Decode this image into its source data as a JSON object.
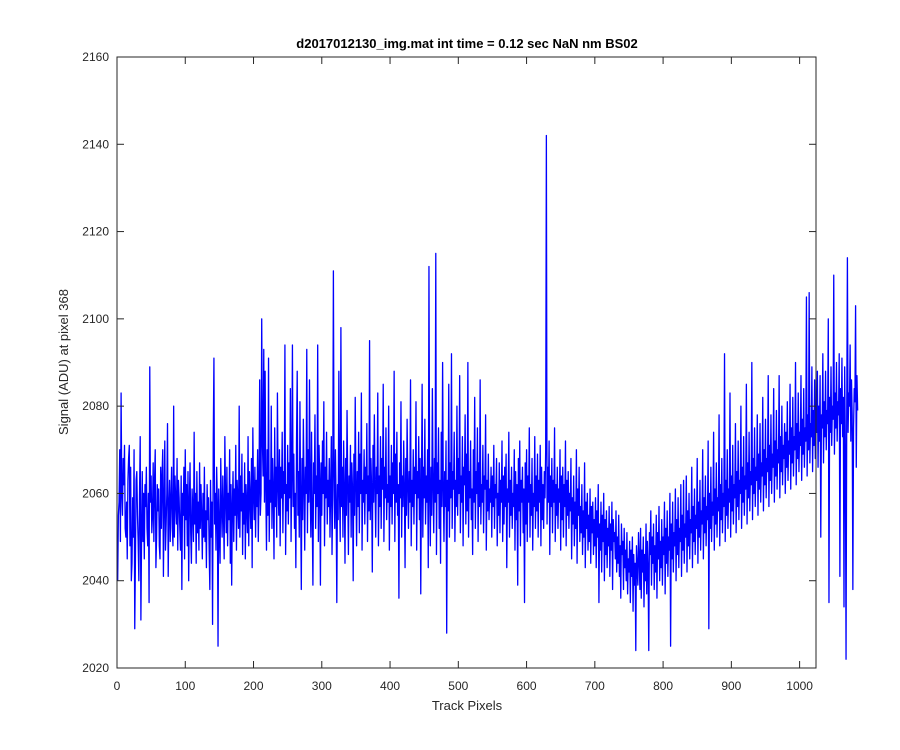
{
  "chart_data": {
    "type": "line",
    "title": "d2017012130_img.mat int time = 0.12 sec  NaN nm BS02",
    "xlabel": "Track Pixels",
    "ylabel": "Signal (ADU) at pixel 368",
    "xlim": [
      0,
      1024
    ],
    "ylim": [
      2020,
      2160
    ],
    "x_ticks": [
      0,
      100,
      200,
      300,
      400,
      500,
      600,
      700,
      800,
      900,
      1000
    ],
    "y_ticks": [
      2020,
      2040,
      2060,
      2080,
      2100,
      2120,
      2140,
      2160
    ],
    "x_tick_labels": [
      "0",
      "100",
      "200",
      "300",
      "400",
      "500",
      "600",
      "700",
      "800",
      "900",
      "1000"
    ],
    "y_tick_labels": [
      "2020",
      "2040",
      "2060",
      "2080",
      "2100",
      "2120",
      "2140",
      "2160"
    ],
    "grid": false,
    "series": [
      {
        "color": "#0000ff",
        "x_start": 1,
        "x_step": 1,
        "values": [
          2040,
          2055,
          2058,
          2070,
          2049,
          2083,
          2060,
          2055,
          2068,
          2062,
          2071,
          2052,
          2050,
          2058,
          2045,
          2063,
          2068,
          2071,
          2048,
          2066,
          2040,
          2044,
          2059,
          2050,
          2070,
          2029,
          2045,
          2063,
          2065,
          2055,
          2049,
          2040,
          2060,
          2073,
          2031,
          2050,
          2065,
          2049,
          2060,
          2045,
          2062,
          2057,
          2066,
          2052,
          2048,
          2060,
          2035,
          2089,
          2058,
          2064,
          2051,
          2055,
          2067,
          2049,
          2063,
          2070,
          2043,
          2050,
          2062,
          2056,
          2061,
          2048,
          2045,
          2066,
          2052,
          2064,
          2070,
          2041,
          2058,
          2072,
          2047,
          2053,
          2060,
          2076,
          2041,
          2056,
          2063,
          2049,
          2059,
          2066,
          2052,
          2048,
          2080,
          2050,
          2064,
          2058,
          2053,
          2068,
          2047,
          2063,
          2059,
          2052,
          2047,
          2064,
          2038,
          2060,
          2055,
          2066,
          2045,
          2070,
          2054,
          2062,
          2048,
          2065,
          2040,
          2058,
          2067,
          2051,
          2044,
          2061,
          2056,
          2049,
          2074,
          2053,
          2060,
          2044,
          2065,
          2051,
          2058,
          2047,
          2067,
          2052,
          2062,
          2055,
          2045,
          2060,
          2050,
          2066,
          2049,
          2056,
          2043,
          2062,
          2054,
          2059,
          2047,
          2038,
          2063,
          2050,
          2058,
          2030,
          2072,
          2091,
          2053,
          2060,
          2047,
          2066,
          2058,
          2025,
          2061,
          2052,
          2044,
          2068,
          2057,
          2050,
          2064,
          2055,
          2045,
          2073,
          2059,
          2051,
          2066,
          2048,
          2060,
          2054,
          2070,
          2044,
          2062,
          2039,
          2057,
          2065,
          2049,
          2061,
          2055,
          2071,
          2047,
          2063,
          2058,
          2052,
          2080,
          2050,
          2064,
          2056,
          2069,
          2046,
          2060,
          2053,
          2067,
          2045,
          2062,
          2057,
          2051,
          2073,
          2048,
          2065,
          2059,
          2052,
          2068,
          2043,
          2075,
          2060,
          2054,
          2066,
          2050,
          2063,
          2057,
          2070,
          2049,
          2061,
          2086,
          2055,
          2060,
          2100,
          2072,
          2064,
          2093,
          2058,
          2088,
          2061,
          2047,
          2070,
          2055,
          2091,
          2049,
          2063,
          2058,
          2080,
          2052,
          2068,
          2060,
          2045,
          2075,
          2057,
          2066,
          2050,
          2083,
          2062,
          2055,
          2070,
          2048,
          2066,
          2059,
          2074,
          2051,
          2065,
          2060,
          2094,
          2046,
          2062,
          2056,
          2071,
          2053,
          2067,
          2059,
          2084,
          2049,
          2064,
          2094,
          2057,
          2069,
          2052,
          2060,
          2043,
          2072,
          2088,
          2055,
          2065,
          2050,
          2081,
          2059,
          2038,
          2068,
          2054,
          2077,
          2062,
          2047,
          2066,
          2060,
          2093,
          2051,
          2070,
          2058,
          2086,
          2061,
          2050,
          2074,
          2055,
          2039,
          2067,
          2060,
          2078,
          2052,
          2064,
          2057,
          2094,
          2049,
          2071,
          2063,
          2039,
          2067,
          2055,
          2072,
          2060,
          2081,
          2048,
          2066,
          2059,
          2074,
          2053,
          2063,
          2057,
          2068,
          2050,
          2061,
          2073,
          2046,
          2059,
          2111,
          2064,
          2052,
          2070,
          2058,
          2035,
          2062,
          2054,
          2088,
          2060,
          2049,
          2098,
          2057,
          2066,
          2050,
          2072,
          2061,
          2044,
          2068,
          2055,
          2079,
          2062,
          2046,
          2064,
          2058,
          2071,
          2050,
          2067,
          2061,
          2040,
          2069,
          2055,
          2082,
          2062,
          2048,
          2065,
          2057,
          2074,
          2051,
          2069,
          2060,
          2083,
          2047,
          2063,
          2058,
          2070,
          2053,
          2066,
          2060,
          2076,
          2049,
          2064,
          2056,
          2095,
          2054,
          2068,
          2061,
          2042,
          2071,
          2058,
          2078,
          2062,
          2050,
          2066,
          2060,
          2083,
          2048,
          2064,
          2057,
          2073,
          2052,
          2068,
          2061,
          2085,
          2049,
          2066,
          2059,
          2075,
          2054,
          2062,
          2058,
          2080,
          2047,
          2064,
          2057,
          2071,
          2053,
          2067,
          2060,
          2088,
          2049,
          2069,
          2058,
          2074,
          2055,
          2062,
          2036,
          2067,
          2059,
          2081,
          2050,
          2064,
          2057,
          2072,
          2061,
          2043,
          2068,
          2055,
          2077,
          2062,
          2052,
          2065,
          2058,
          2086,
          2048,
          2063,
          2057,
          2070,
          2053,
          2066,
          2060,
          2081,
          2047,
          2065,
          2059,
          2073,
          2054,
          2068,
          2037,
          2062,
          2085,
          2050,
          2066,
          2059,
          2077,
          2053,
          2064,
          2058,
          2070,
          2043,
          2112,
          2060,
          2048,
          2066,
          2055,
          2084,
          2062,
          2051,
          2068,
          2058,
          2115,
          2046,
          2067,
          2060,
          2075,
          2052,
          2063,
          2044,
          2074,
          2057,
          2090,
          2061,
          2049,
          2065,
          2057,
          2072,
          2028,
          2063,
          2056,
          2085,
          2050,
          2067,
          2059,
          2092,
          2052,
          2065,
          2061,
          2074,
          2049,
          2063,
          2057,
          2080,
          2055,
          2068,
          2060,
          2087,
          2051,
          2064,
          2058,
          2073,
          2048,
          2066,
          2062,
          2078,
          2053,
          2069,
          2056,
          2090,
          2050,
          2065,
          2059,
          2072,
          2054,
          2061,
          2046,
          2070,
          2058,
          2082,
          2052,
          2065,
          2060,
          2075,
          2049,
          2067,
          2057,
          2086,
          2053,
          2062,
          2058,
          2071,
          2051,
          2064,
          2061,
          2078,
          2047,
          2063,
          2056,
          2069,
          2054,
          2061,
          2058,
          2066,
          2050,
          2064,
          2057,
          2071,
          2052,
          2062,
          2059,
          2068,
          2048,
          2060,
          2055,
          2067,
          2051,
          2063,
          2058,
          2072,
          2049,
          2064,
          2053,
          2066,
          2057,
          2069,
          2043,
          2061,
          2058,
          2074,
          2050,
          2063,
          2055,
          2066,
          2052,
          2060,
          2057,
          2070,
          2047,
          2065,
          2054,
          2062,
          2039,
          2068,
          2056,
          2072,
          2048,
          2063,
          2058,
          2066,
          2051,
          2061,
          2035,
          2067,
          2053,
          2070,
          2049,
          2064,
          2058,
          2075,
          2050,
          2062,
          2055,
          2068,
          2047,
          2060,
          2057,
          2073,
          2052,
          2064,
          2056,
          2069,
          2050,
          2063,
          2058,
          2071,
          2048,
          2066,
          2054,
          2062,
          2052,
          2065,
          2059,
          2070,
          2142,
          2053,
          2066,
          2058,
          2072,
          2046,
          2064,
          2057,
          2068,
          2051,
          2063,
          2058,
          2075,
          2049,
          2062,
          2055,
          2066,
          2052,
          2061,
          2058,
          2070,
          2047,
          2064,
          2054,
          2066,
          2050,
          2062,
          2057,
          2072,
          2048,
          2063,
          2055,
          2065,
          2052,
          2060,
          2056,
          2068,
          2045,
          2059,
          2053,
          2064,
          2048,
          2058,
          2052,
          2070,
          2044,
          2061,
          2055,
          2066,
          2049,
          2057,
          2051,
          2062,
          2046,
          2056,
          2050,
          2067,
          2043,
          2058,
          2052,
          2060,
          2047,
          2055,
          2049,
          2061,
          2044,
          2057,
          2051,
          2058,
          2046,
          2054,
          2048,
          2059,
          2043,
          2056,
          2050,
          2062,
          2035,
          2053,
          2047,
          2058,
          2042,
          2055,
          2049,
          2060,
          2040,
          2054,
          2046,
          2056,
          2043,
          2052,
          2048,
          2057,
          2041,
          2053,
          2047,
          2058,
          2038,
          2054,
          2049,
          2051,
          2045,
          2056,
          2042,
          2050,
          2044,
          2055,
          2041,
          2048,
          2036,
          2053,
          2046,
          2049,
          2038,
          2052,
          2043,
          2047,
          2040,
          2051,
          2037,
          2045,
          2042,
          2049,
          2035,
          2047,
          2041,
          2050,
          2033,
          2046,
          2039,
          2044,
          2024,
          2048,
          2043,
          2039,
          2051,
          2045,
          2038,
          2052,
          2036,
          2047,
          2042,
          2050,
          2034,
          2046,
          2040,
          2053,
          2037,
          2049,
          2043,
          2024,
          2051,
          2046,
          2056,
          2039,
          2050,
          2044,
          2053,
          2038,
          2048,
          2042,
          2055,
          2036,
          2051,
          2045,
          2057,
          2040,
          2049,
          2043,
          2054,
          2039,
          2050,
          2046,
          2058,
          2037,
          2052,
          2044,
          2056,
          2041,
          2050,
          2047,
          2060,
          2025,
          2053,
          2045,
          2058,
          2042,
          2051,
          2048,
          2061,
          2040,
          2054,
          2046,
          2059,
          2043,
          2052,
          2049,
          2062,
          2041,
          2055,
          2047,
          2063,
          2044,
          2053,
          2050,
          2064,
          2042,
          2056,
          2048,
          2060,
          2045,
          2054,
          2051,
          2066,
          2043,
          2057,
          2049,
          2061,
          2046,
          2055,
          2052,
          2068,
          2044,
          2058,
          2050,
          2063,
          2047,
          2056,
          2053,
          2070,
          2045,
          2059,
          2051,
          2064,
          2048,
          2057,
          2054,
          2072,
          2029,
          2060,
          2052,
          2066,
          2049,
          2058,
          2055,
          2074,
          2047,
          2061,
          2053,
          2067,
          2050,
          2059,
          2056,
          2078,
          2048,
          2062,
          2054,
          2068,
          2051,
          2060,
          2057,
          2092,
          2049,
          2063,
          2055,
          2070,
          2052,
          2061,
          2058,
          2083,
          2050,
          2064,
          2056,
          2071,
          2053,
          2062,
          2059,
          2076,
          2051,
          2065,
          2057,
          2072,
          2054,
          2063,
          2060,
          2080,
          2052,
          2066,
          2058,
          2073,
          2055,
          2064,
          2061,
          2085,
          2053,
          2067,
          2059,
          2074,
          2056,
          2065,
          2062,
          2090,
          2054,
          2068,
          2060,
          2075,
          2057,
          2066,
          2063,
          2078,
          2055,
          2069,
          2061,
          2076,
          2058,
          2067,
          2064,
          2082,
          2056,
          2070,
          2062,
          2077,
          2059,
          2068,
          2065,
          2087,
          2057,
          2071,
          2063,
          2078,
          2060,
          2069,
          2066,
          2084,
          2058,
          2072,
          2064,
          2079,
          2061,
          2070,
          2067,
          2087,
          2059,
          2073,
          2065,
          2080,
          2062,
          2071,
          2068,
          2076,
          2060,
          2074,
          2066,
          2081,
          2063,
          2072,
          2069,
          2085,
          2061,
          2075,
          2067,
          2082,
          2064,
          2073,
          2070,
          2090,
          2062,
          2076,
          2068,
          2083,
          2065,
          2074,
          2071,
          2087,
          2063,
          2077,
          2069,
          2084,
          2066,
          2075,
          2072,
          2105,
          2064,
          2078,
          2070,
          2106,
          2067,
          2076,
          2073,
          2089,
          2065,
          2079,
          2071,
          2086,
          2068,
          2077,
          2074,
          2088,
          2066,
          2080,
          2072,
          2087,
          2050,
          2078,
          2075,
          2092,
          2067,
          2081,
          2073,
          2088,
          2070,
          2079,
          2076,
          2100,
          2035,
          2082,
          2074,
          2089,
          2071,
          2080,
          2077,
          2110,
          2069,
          2083,
          2075,
          2090,
          2072,
          2081,
          2078,
          2092,
          2041,
          2084,
          2076,
          2091,
          2073,
          2082,
          2034,
          2089,
          2071,
          2022,
          2077,
          2114,
          2074,
          2083,
          2080,
          2094,
          2072,
          2086,
          2078,
          2038,
          2075,
          2084,
          2081,
          2103,
          2066,
          2087,
          2079
        ]
      }
    ]
  }
}
